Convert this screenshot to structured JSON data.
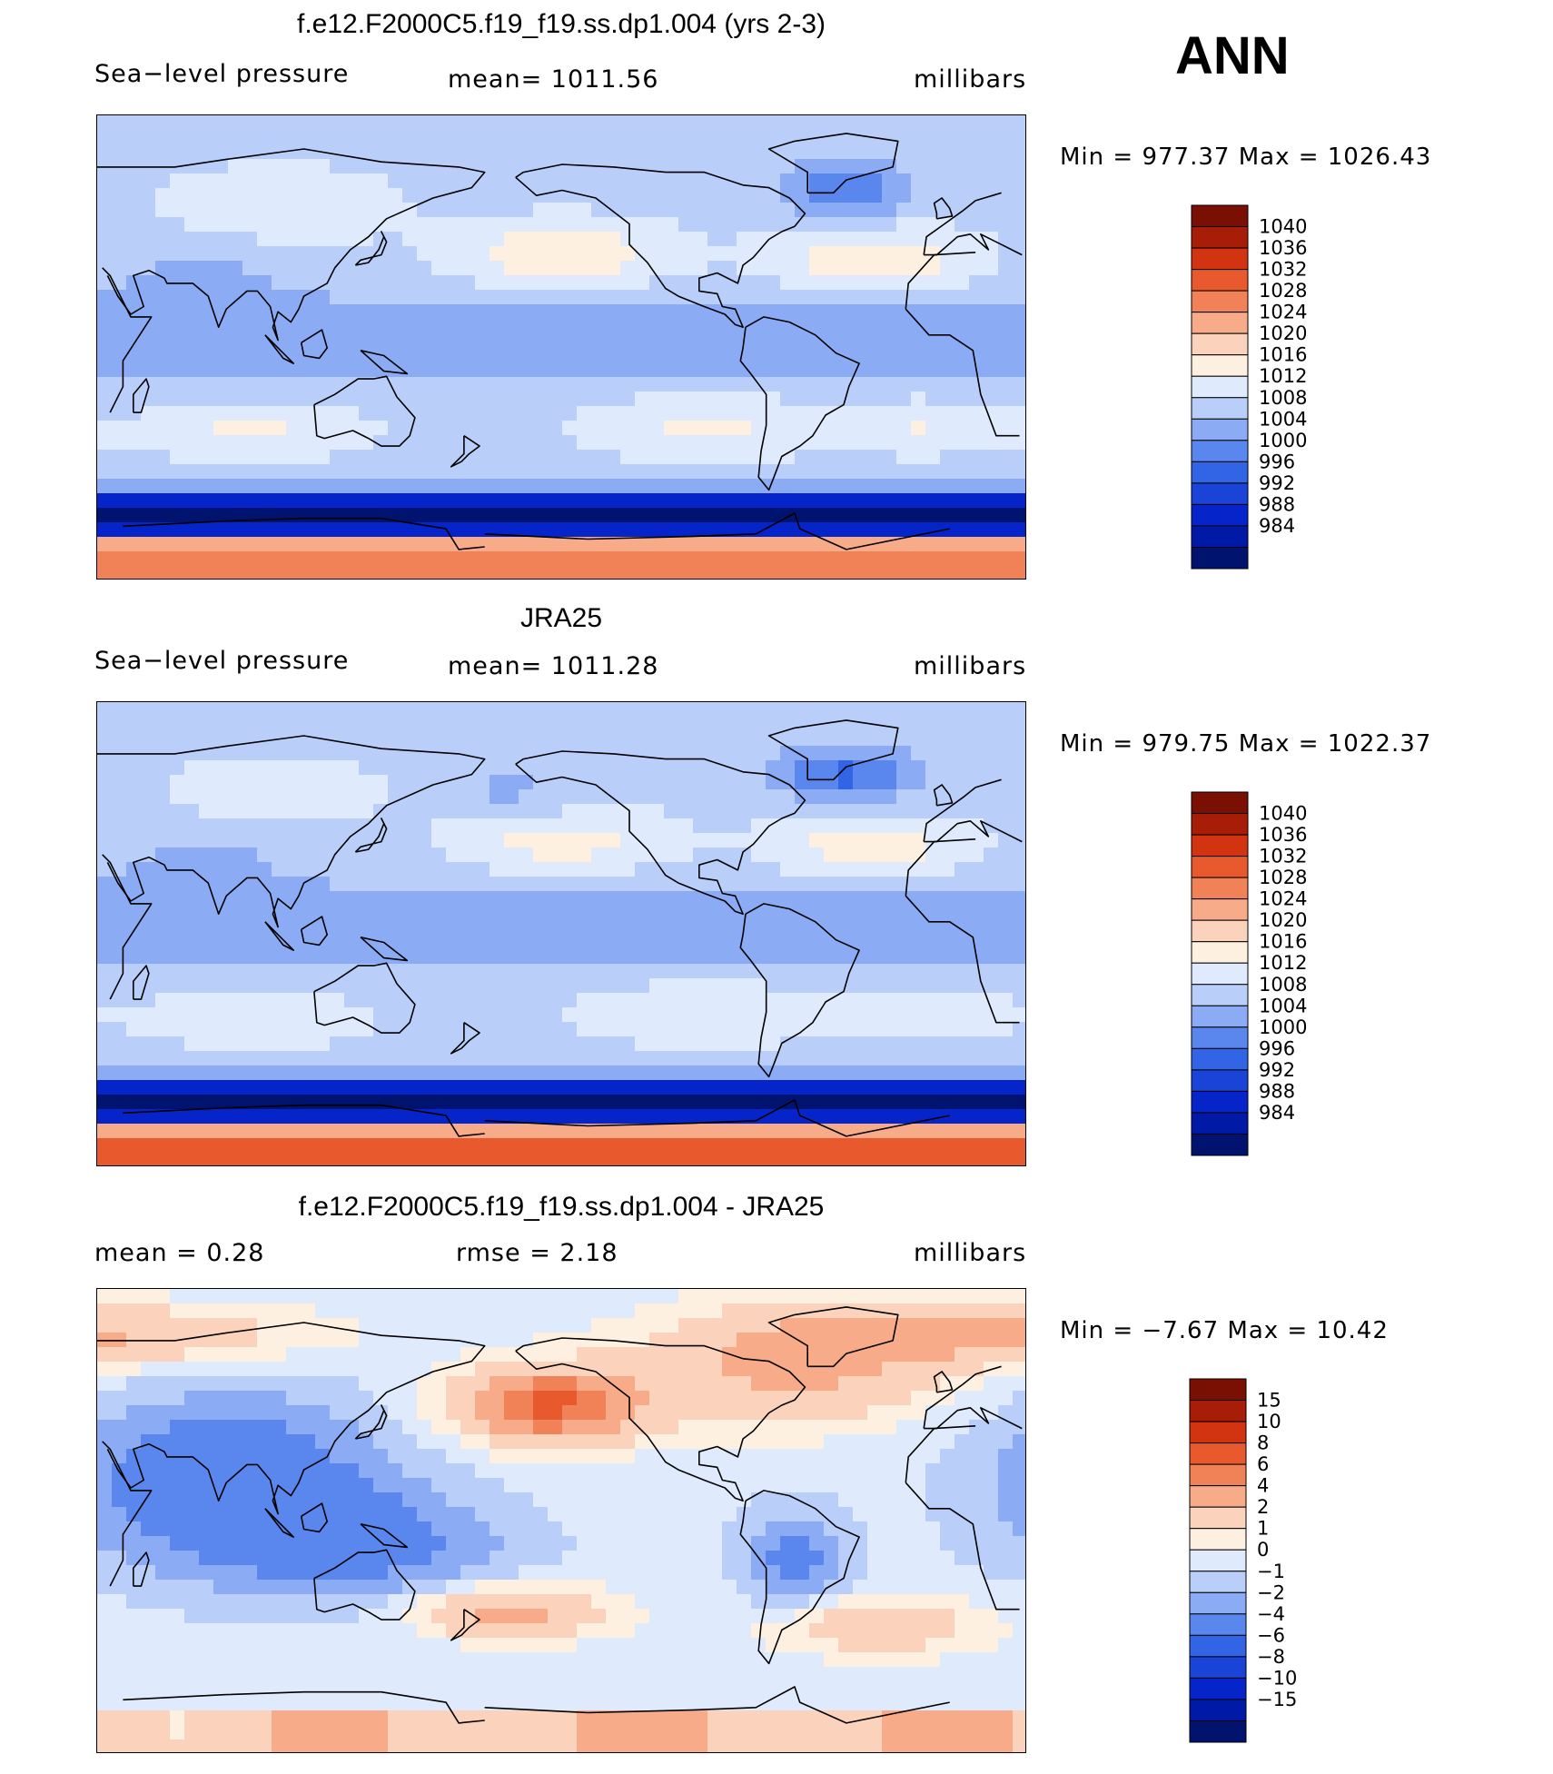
{
  "season": "ANN",
  "colors": {
    "obs_palette": [
      "#00136e",
      "#0019a6",
      "#0524c9",
      "#1a43d8",
      "#3165e6",
      "#5a87ee",
      "#8bacf5",
      "#b9cffa",
      "#dfebfc",
      "#fdf0e0",
      "#fbd2bb",
      "#f7ab89",
      "#f18257",
      "#e85a2e",
      "#d23412",
      "#a81d08",
      "#7a1003"
    ],
    "diff_palette": [
      "#00136e",
      "#0019a6",
      "#0524c9",
      "#1a43d8",
      "#3165e6",
      "#5a87ee",
      "#8bacf5",
      "#b9cffa",
      "#dfebfc",
      "#fdf0e0",
      "#fbd2bb",
      "#f7ab89",
      "#f18257",
      "#e85a2e",
      "#d23412",
      "#a81d08",
      "#7a1003"
    ],
    "coast": "#000000"
  },
  "chart_data": [
    {
      "type": "heatmap",
      "id": "model",
      "title": "f.e12.F2000C5.f19_f19.ss.dp1.004 (yrs 2-3)",
      "left_label": "Sea−level pressure",
      "center_label": "mean=  1011.56",
      "units": "millibars",
      "min_label": "Min  =  977.37",
      "max_label": "Max  =  1026.43",
      "min": 977.37,
      "max": 1026.43,
      "mean": 1011.56,
      "levels": [
        984,
        988,
        992,
        996,
        1000,
        1004,
        1008,
        1012,
        1016,
        1020,
        1024,
        1028,
        1032,
        1036,
        1040
      ],
      "level_labels": [
        "984",
        "988",
        "992",
        "996",
        "1000",
        "1004",
        "1008",
        "1012",
        "1016",
        "1020",
        "1024",
        "1028",
        "1032",
        "1036",
        "1040"
      ]
    },
    {
      "type": "heatmap",
      "id": "obs",
      "title": "JRA25",
      "left_label": "Sea−level pressure",
      "center_label": "mean=  1011.28",
      "units": "millibars",
      "min_label": "Min  =  979.75",
      "max_label": "Max  =  1022.37",
      "min": 979.75,
      "max": 1022.37,
      "mean": 1011.28,
      "levels": [
        984,
        988,
        992,
        996,
        1000,
        1004,
        1008,
        1012,
        1016,
        1020,
        1024,
        1028,
        1032,
        1036,
        1040
      ],
      "level_labels": [
        "984",
        "988",
        "992",
        "996",
        "1000",
        "1004",
        "1008",
        "1012",
        "1016",
        "1020",
        "1024",
        "1028",
        "1032",
        "1036",
        "1040"
      ]
    },
    {
      "type": "heatmap",
      "id": "diff",
      "title": "f.e12.F2000C5.f19_f19.ss.dp1.004 - JRA25",
      "left_label": "mean =     0.28",
      "center_label": "rmse =     2.18",
      "units": "millibars",
      "min_label": "Min  =   −7.67",
      "max_label": "Max  =    10.42",
      "min": -7.67,
      "max": 10.42,
      "mean": 0.28,
      "rmse": 2.18,
      "levels": [
        -15,
        -10,
        -8,
        -6,
        -4,
        -2,
        -1,
        0,
        1,
        2,
        4,
        6,
        8,
        10,
        15
      ],
      "level_labels": [
        "−15",
        "−10",
        "−8",
        "−6",
        "−4",
        "−2",
        "−1",
        "0",
        "1",
        "2",
        "4",
        "6",
        "8",
        "10",
        "15"
      ]
    }
  ]
}
